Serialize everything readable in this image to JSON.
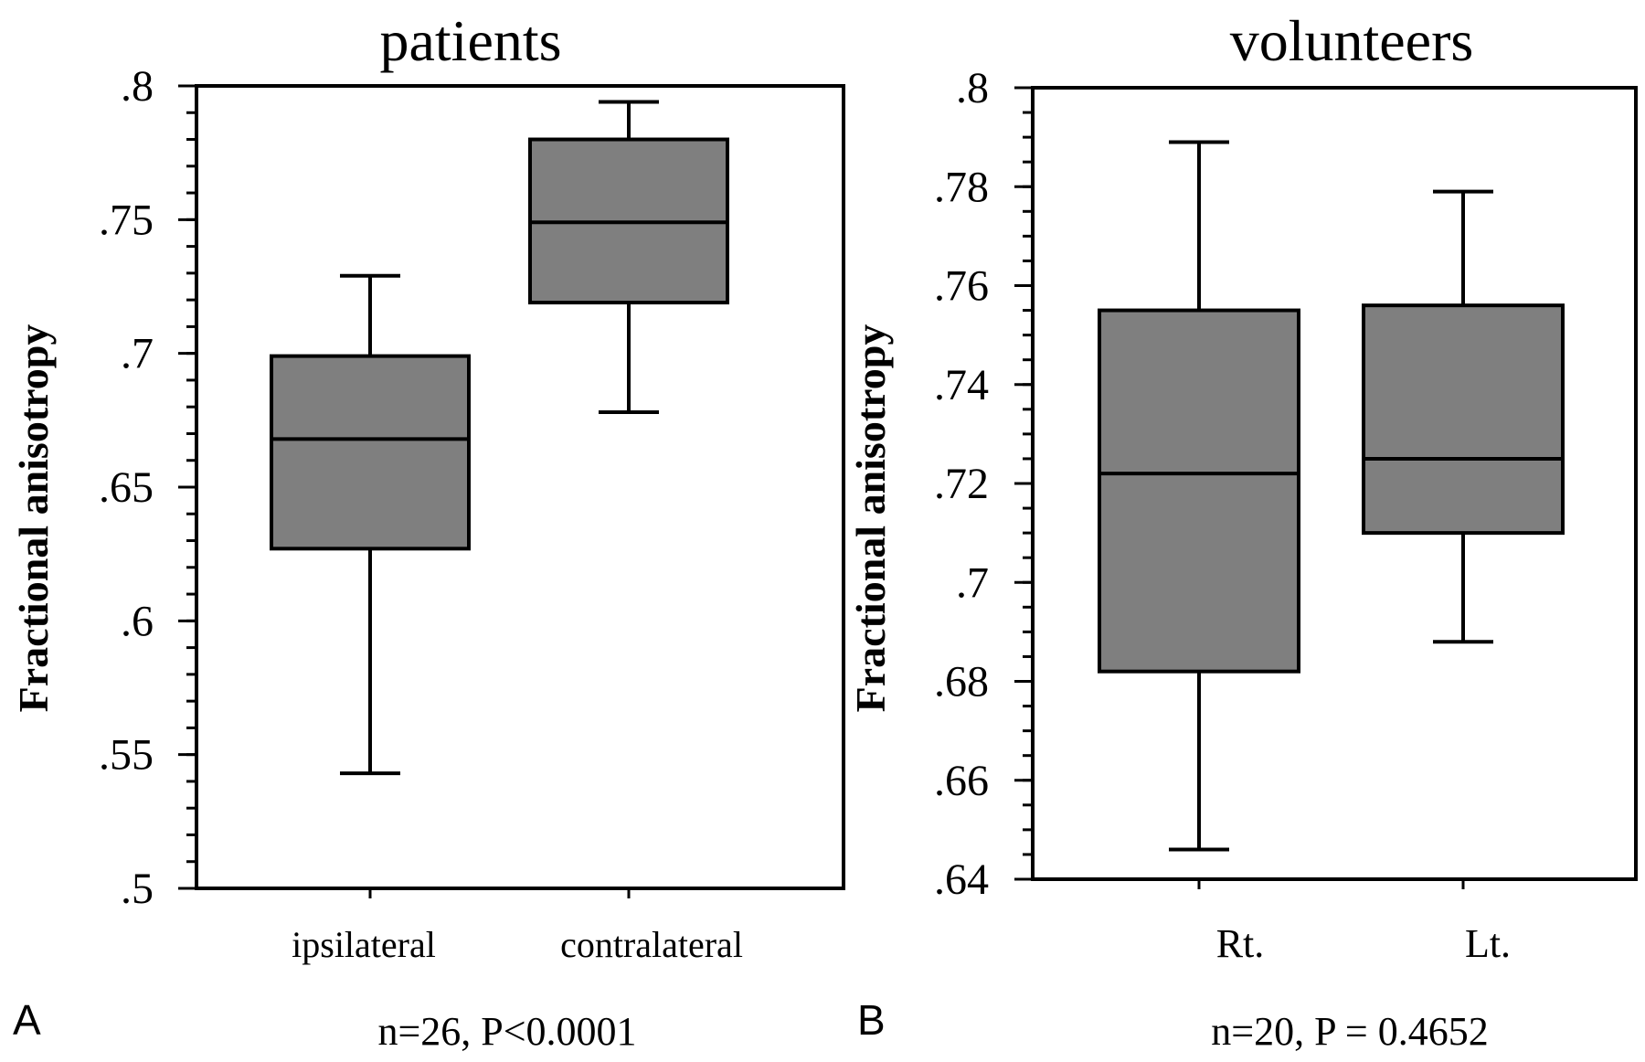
{
  "panel_labels": {
    "a": "A",
    "b": "B"
  },
  "colors": {
    "box_fill": "#7f7f7f",
    "line": "#000000",
    "background": "#ffffff"
  },
  "chart_data": [
    {
      "type": "boxplot",
      "title": "patients",
      "ylabel": "Fractional anisotropy",
      "xlabel": "",
      "ylim": [
        0.5,
        0.8
      ],
      "yticks": [
        0.5,
        0.55,
        0.6,
        0.65,
        0.7,
        0.75,
        0.8
      ],
      "ytick_labels": [
        ".5",
        ".55",
        ".6",
        ".65",
        ".7",
        ".75",
        ".8"
      ],
      "minor_ytick_step": 0.01,
      "categories": [
        "ipsilateral",
        "contralateral"
      ],
      "boxes": [
        {
          "category": "ipsilateral",
          "whisker_low": 0.543,
          "q1": 0.627,
          "median": 0.668,
          "q3": 0.699,
          "whisker_high": 0.729
        },
        {
          "category": "contralateral",
          "whisker_low": 0.678,
          "q1": 0.719,
          "median": 0.749,
          "q3": 0.78,
          "whisker_high": 0.794
        }
      ],
      "annotation": "n=26, P<0.0001",
      "grid": false
    },
    {
      "type": "boxplot",
      "title": "volunteers",
      "ylabel": "Fractional anisotropy",
      "xlabel": "",
      "ylim": [
        0.64,
        0.8
      ],
      "yticks": [
        0.64,
        0.66,
        0.68,
        0.7,
        0.72,
        0.74,
        0.76,
        0.78,
        0.8
      ],
      "ytick_labels": [
        ".64",
        ".66",
        ".68",
        ".7",
        ".72",
        ".74",
        ".76",
        ".78",
        ".8"
      ],
      "minor_ytick_step": 0.005,
      "categories": [
        "Rt.",
        "Lt."
      ],
      "boxes": [
        {
          "category": "Rt.",
          "whisker_low": 0.646,
          "q1": 0.682,
          "median": 0.722,
          "q3": 0.755,
          "whisker_high": 0.789
        },
        {
          "category": "Lt.",
          "whisker_low": 0.688,
          "q1": 0.71,
          "median": 0.725,
          "q3": 0.756,
          "whisker_high": 0.779
        }
      ],
      "annotation": "n=20, P = 0.4652",
      "grid": false
    }
  ]
}
